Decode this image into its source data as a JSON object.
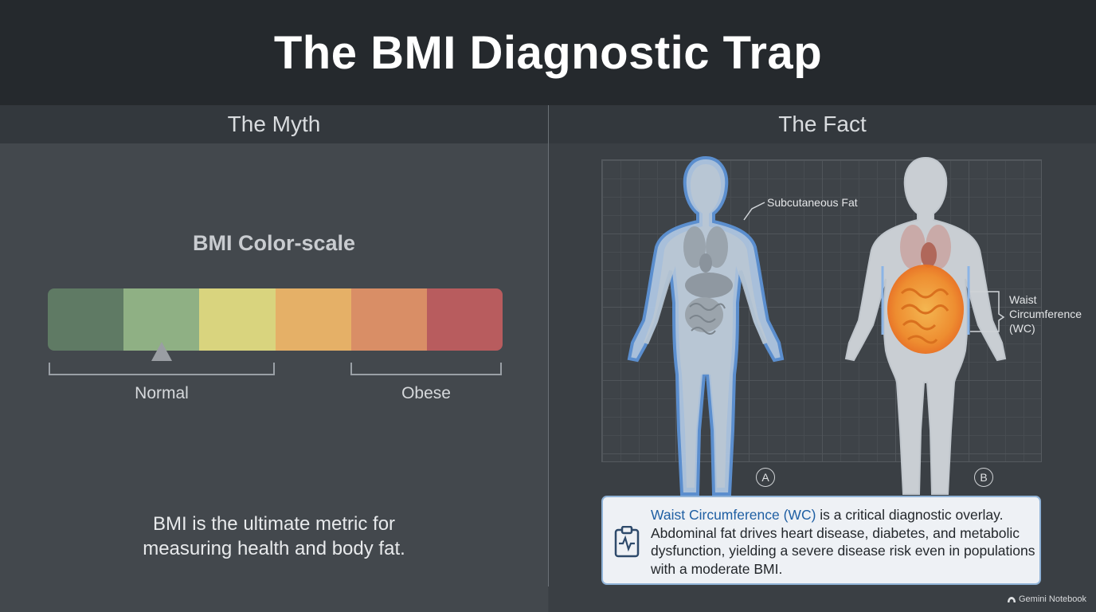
{
  "title": "The BMI Diagnostic Trap",
  "myth": {
    "header": "The Myth",
    "scale_title": "BMI Color-scale",
    "scale_colors": [
      "#5f7a64",
      "#8fb084",
      "#d9d47e",
      "#e5b067",
      "#d98e66",
      "#b85c5e"
    ],
    "brackets": [
      {
        "label": "Normal"
      },
      {
        "label": "Obese"
      }
    ],
    "statement_line1": "BMI is the ultimate metric for",
    "statement_line2": "measuring health and body fat."
  },
  "fact": {
    "header": "The Fact",
    "label_subcutaneous": "Subcutaneous Fat",
    "label_wc_line1": "Waist",
    "label_wc_line2": "Circumference",
    "label_wc_line3": "(WC)",
    "figure_a": "A",
    "figure_b": "B",
    "info_highlight": "Waist Circumference (WC)",
    "info_rest": " is a critical diagnostic overlay. Abdominal fat drives heart disease, diabetes, and metabolic dysfunction, yielding a severe disease risk even in populations with a moderate BMI.",
    "icon": "clipboard-heartbeat-icon"
  },
  "brand": "Gemini Notebook"
}
